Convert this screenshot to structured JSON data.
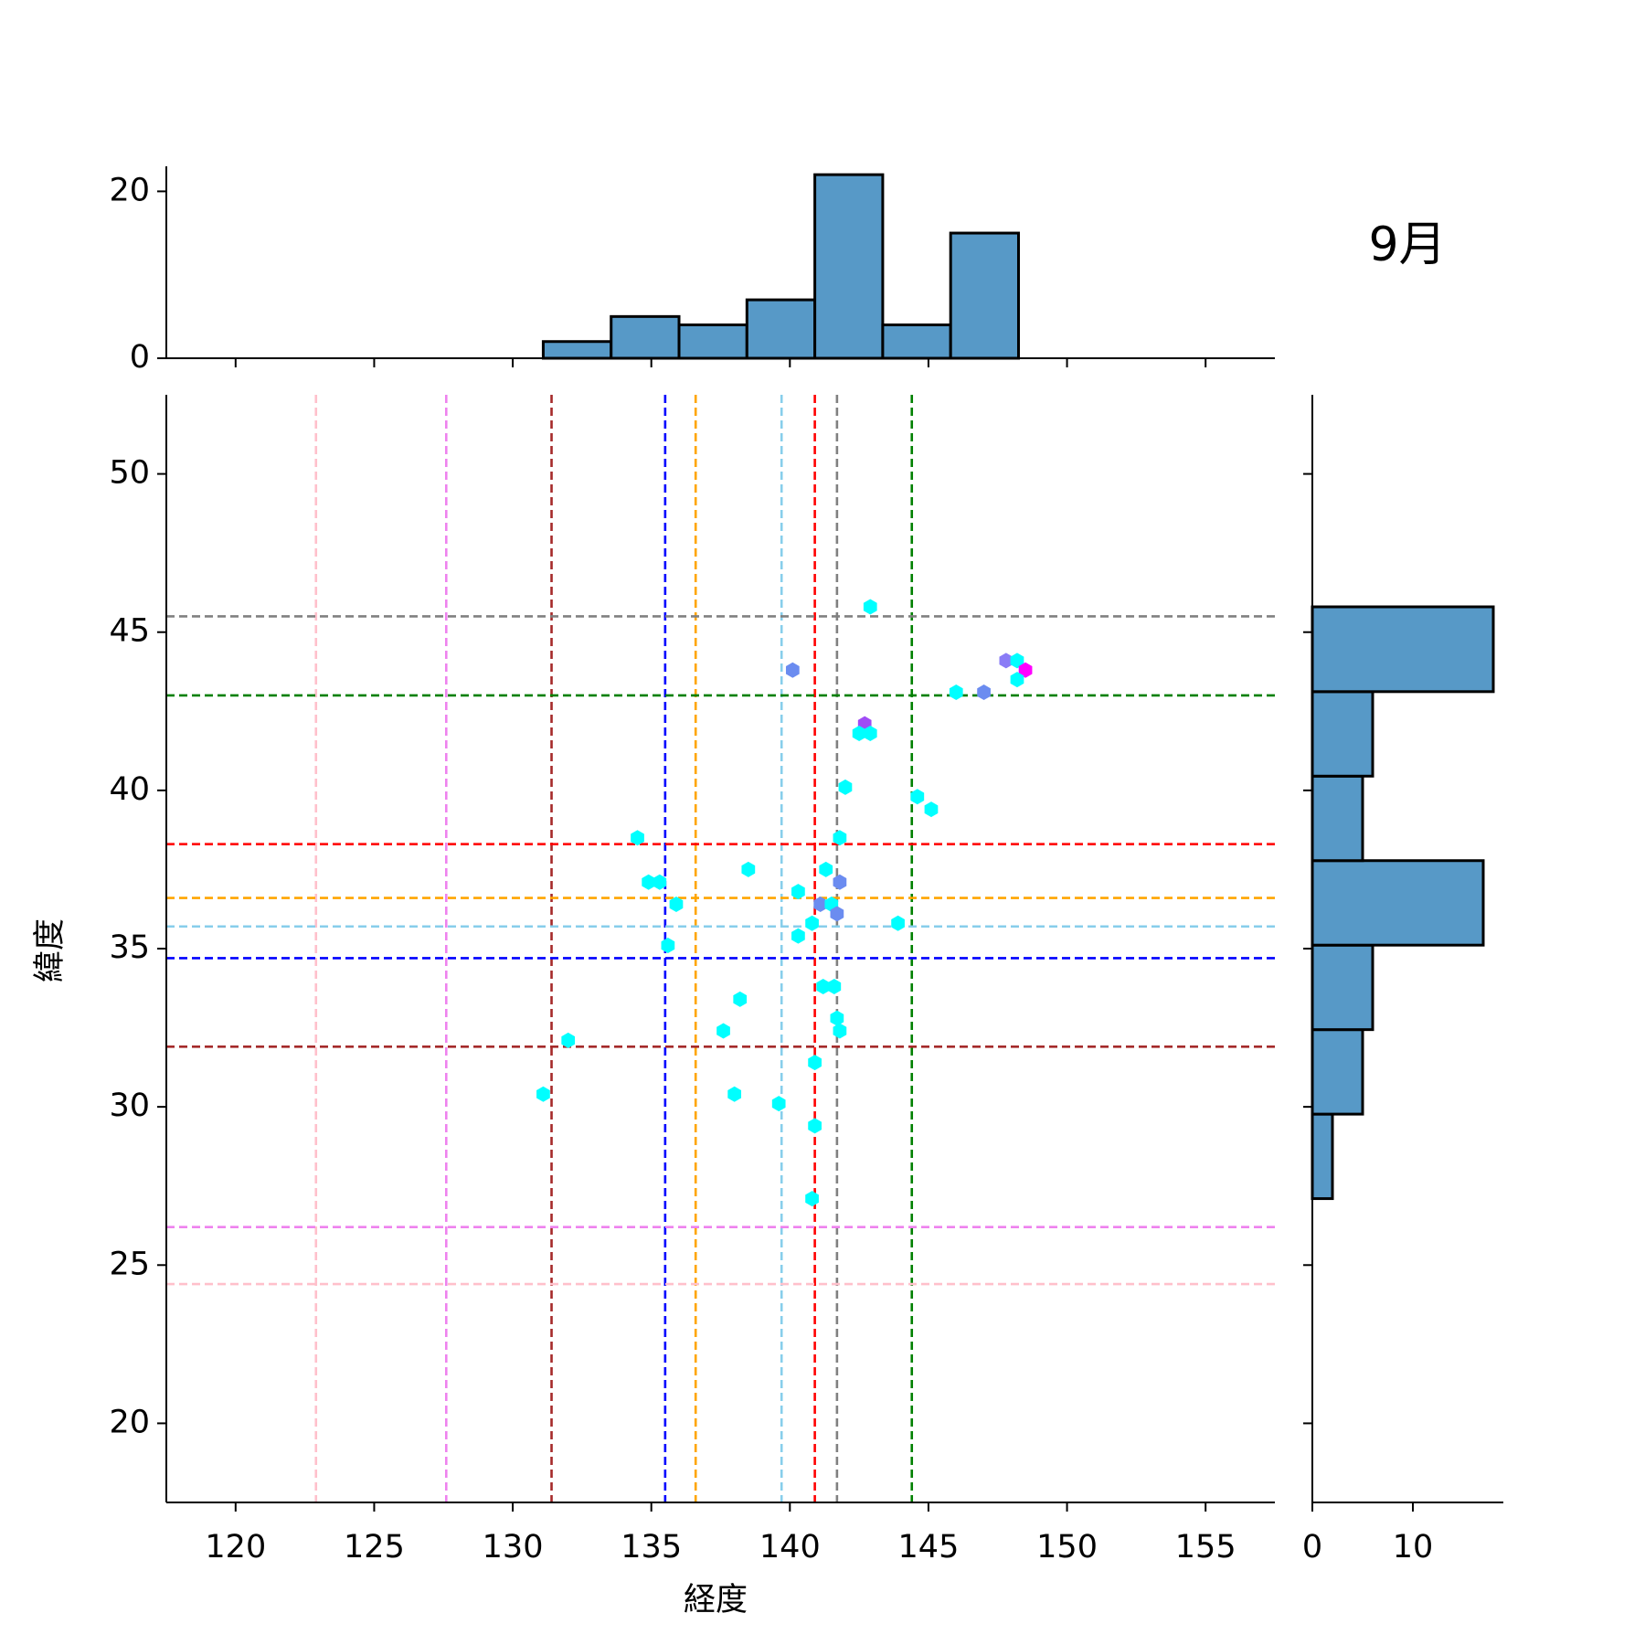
{
  "chart_data": {
    "type": "scatter",
    "title": "9月",
    "xlabel": "経度",
    "ylabel": "緯度",
    "xlim": [
      117.5,
      157.5
    ],
    "ylim": [
      17.5,
      52.5
    ],
    "xticks": [
      120,
      125,
      130,
      135,
      140,
      145,
      150,
      155
    ],
    "yticks": [
      20,
      25,
      30,
      35,
      40,
      45,
      50
    ],
    "grid": false,
    "points": [
      {
        "x": 142.9,
        "y": 45.8,
        "c": "#00ffff"
      },
      {
        "x": 140.1,
        "y": 43.8,
        "c": "#6b8cf0"
      },
      {
        "x": 147.8,
        "y": 44.1,
        "c": "#8a7cf6"
      },
      {
        "x": 148.2,
        "y": 44.1,
        "c": "#00ffff"
      },
      {
        "x": 148.5,
        "y": 43.8,
        "c": "#ff00ff"
      },
      {
        "x": 148.2,
        "y": 43.5,
        "c": "#00ffff"
      },
      {
        "x": 146.0,
        "y": 43.1,
        "c": "#00ffff"
      },
      {
        "x": 147.0,
        "y": 43.1,
        "c": "#6b8cf0"
      },
      {
        "x": 142.7,
        "y": 42.1,
        "c": "#a04cf5"
      },
      {
        "x": 142.5,
        "y": 41.8,
        "c": "#00ffff"
      },
      {
        "x": 142.9,
        "y": 41.8,
        "c": "#00ffff"
      },
      {
        "x": 142.0,
        "y": 40.1,
        "c": "#00ffff"
      },
      {
        "x": 144.6,
        "y": 39.8,
        "c": "#00ffff"
      },
      {
        "x": 145.1,
        "y": 39.4,
        "c": "#00ffff"
      },
      {
        "x": 134.5,
        "y": 38.5,
        "c": "#00ffff"
      },
      {
        "x": 141.8,
        "y": 38.5,
        "c": "#00ffff"
      },
      {
        "x": 138.5,
        "y": 37.5,
        "c": "#00ffff"
      },
      {
        "x": 141.3,
        "y": 37.5,
        "c": "#00ffff"
      },
      {
        "x": 134.9,
        "y": 37.1,
        "c": "#00ffff"
      },
      {
        "x": 135.3,
        "y": 37.1,
        "c": "#00ffff"
      },
      {
        "x": 141.8,
        "y": 37.1,
        "c": "#6b8cf0"
      },
      {
        "x": 140.3,
        "y": 36.8,
        "c": "#00ffff"
      },
      {
        "x": 135.9,
        "y": 36.4,
        "c": "#00ffff"
      },
      {
        "x": 141.1,
        "y": 36.4,
        "c": "#6b8cf0"
      },
      {
        "x": 141.5,
        "y": 36.4,
        "c": "#00ffff"
      },
      {
        "x": 141.7,
        "y": 36.1,
        "c": "#6b8cf0"
      },
      {
        "x": 140.8,
        "y": 35.8,
        "c": "#00ffff"
      },
      {
        "x": 143.9,
        "y": 35.8,
        "c": "#00ffff"
      },
      {
        "x": 140.3,
        "y": 35.4,
        "c": "#00ffff"
      },
      {
        "x": 135.6,
        "y": 35.1,
        "c": "#00ffff"
      },
      {
        "x": 141.2,
        "y": 33.8,
        "c": "#00ffff"
      },
      {
        "x": 141.6,
        "y": 33.8,
        "c": "#00ffff"
      },
      {
        "x": 138.2,
        "y": 33.4,
        "c": "#00ffff"
      },
      {
        "x": 141.7,
        "y": 32.8,
        "c": "#00ffff"
      },
      {
        "x": 137.6,
        "y": 32.4,
        "c": "#00ffff"
      },
      {
        "x": 141.8,
        "y": 32.4,
        "c": "#00ffff"
      },
      {
        "x": 132.0,
        "y": 32.1,
        "c": "#00ffff"
      },
      {
        "x": 140.9,
        "y": 31.4,
        "c": "#00ffff"
      },
      {
        "x": 131.1,
        "y": 30.4,
        "c": "#00ffff"
      },
      {
        "x": 138.0,
        "y": 30.4,
        "c": "#00ffff"
      },
      {
        "x": 139.6,
        "y": 30.1,
        "c": "#00ffff"
      },
      {
        "x": 140.9,
        "y": 29.4,
        "c": "#00ffff"
      },
      {
        "x": 140.8,
        "y": 27.1,
        "c": "#00ffff"
      }
    ],
    "reference_lines": {
      "vertical": [
        {
          "x": 122.9,
          "color": "#ffc0cb"
        },
        {
          "x": 127.6,
          "color": "#ee82ee"
        },
        {
          "x": 131.4,
          "color": "#a52a2a"
        },
        {
          "x": 135.5,
          "color": "#0000ff"
        },
        {
          "x": 136.6,
          "color": "#ffa500"
        },
        {
          "x": 139.7,
          "color": "#87ceeb"
        },
        {
          "x": 140.9,
          "color": "#ff0000"
        },
        {
          "x": 141.7,
          "color": "#808080"
        },
        {
          "x": 144.4,
          "color": "#008000"
        }
      ],
      "horizontal": [
        {
          "y": 45.5,
          "color": "#808080"
        },
        {
          "y": 43.0,
          "color": "#008000"
        },
        {
          "y": 38.3,
          "color": "#ff0000"
        },
        {
          "y": 36.6,
          "color": "#ffa500"
        },
        {
          "y": 35.7,
          "color": "#87ceeb"
        },
        {
          "y": 34.7,
          "color": "#0000ff"
        },
        {
          "y": 31.9,
          "color": "#a52a2a"
        },
        {
          "y": 26.2,
          "color": "#ee82ee"
        },
        {
          "y": 24.4,
          "color": "#ffc0cb"
        }
      ]
    },
    "histogram_x": {
      "bins": [
        [
          131.1,
          133.55
        ],
        [
          133.55,
          136.0
        ],
        [
          136.0,
          138.45
        ],
        [
          138.45,
          140.9
        ],
        [
          140.9,
          143.35
        ],
        [
          143.35,
          145.8
        ],
        [
          145.8,
          148.25
        ]
      ],
      "counts": [
        2,
        5,
        4,
        7,
        22,
        4,
        15
      ],
      "ylim": [
        0,
        23
      ],
      "yticks": [
        0,
        20
      ]
    },
    "histogram_y": {
      "bins": [
        [
          27.1,
          29.77
        ],
        [
          29.77,
          32.44
        ],
        [
          32.44,
          35.11
        ],
        [
          35.11,
          37.78
        ],
        [
          37.78,
          40.45
        ],
        [
          40.45,
          43.12
        ],
        [
          43.12,
          45.8
        ]
      ],
      "counts": [
        2,
        5,
        6,
        17,
        5,
        6,
        18
      ],
      "xlim": [
        0,
        19
      ],
      "xticks": [
        0,
        10
      ]
    },
    "hist_color": "#5799c7"
  }
}
